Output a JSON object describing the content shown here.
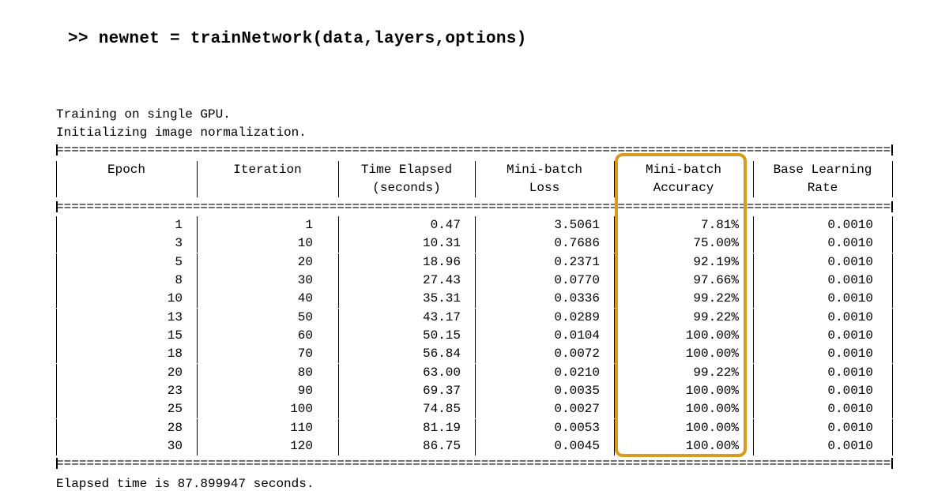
{
  "command": ">> newnet = trainNetwork(data,layers,options)",
  "status_lines": [
    "Training on single GPU.",
    "Initializing image normalization."
  ],
  "rule_char": "=",
  "header": {
    "row1": [
      "Epoch",
      "Iteration",
      "Time Elapsed",
      "Mini-batch",
      "Mini-batch",
      "Base Learning"
    ],
    "row2": [
      "",
      "",
      "(seconds)",
      "Loss",
      "Accuracy",
      "Rate"
    ]
  },
  "rows": [
    [
      "1",
      "1",
      "0.47",
      "3.5061",
      "7.81%",
      "0.0010"
    ],
    [
      "3",
      "10",
      "10.31",
      "0.7686",
      "75.00%",
      "0.0010"
    ],
    [
      "5",
      "20",
      "18.96",
      "0.2371",
      "92.19%",
      "0.0010"
    ],
    [
      "8",
      "30",
      "27.43",
      "0.0770",
      "97.66%",
      "0.0010"
    ],
    [
      "10",
      "40",
      "35.31",
      "0.0336",
      "99.22%",
      "0.0010"
    ],
    [
      "13",
      "50",
      "43.17",
      "0.0289",
      "99.22%",
      "0.0010"
    ],
    [
      "15",
      "60",
      "50.15",
      "0.0104",
      "100.00%",
      "0.0010"
    ],
    [
      "18",
      "70",
      "56.84",
      "0.0072",
      "100.00%",
      "0.0010"
    ],
    [
      "20",
      "80",
      "63.00",
      "0.0210",
      "99.22%",
      "0.0010"
    ],
    [
      "23",
      "90",
      "69.37",
      "0.0035",
      "100.00%",
      "0.0010"
    ],
    [
      "25",
      "100",
      "74.85",
      "0.0027",
      "100.00%",
      "0.0010"
    ],
    [
      "28",
      "110",
      "81.19",
      "0.0053",
      "100.00%",
      "0.0010"
    ],
    [
      "30",
      "120",
      "86.75",
      "0.0045",
      "100.00%",
      "0.0010"
    ]
  ],
  "highlight_color": "#d99a1e",
  "footer": "Elapsed time is 87.899947 seconds."
}
